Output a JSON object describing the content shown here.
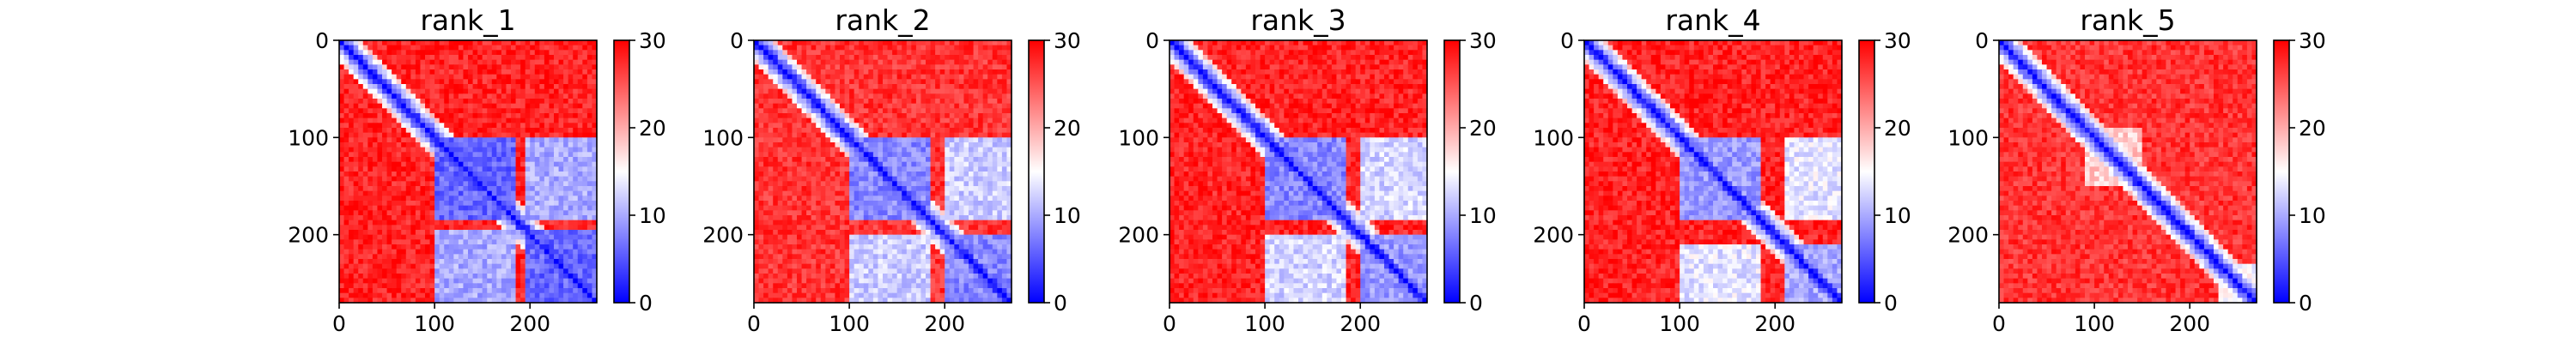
{
  "figure": {
    "description_free": true
  },
  "chart_data": [
    {
      "type": "heatmap",
      "title": "rank_1",
      "xlabel": "",
      "ylabel": "",
      "xlim": [
        0,
        270
      ],
      "ylim": [
        270,
        0
      ],
      "x_ticks": [
        0,
        100,
        200
      ],
      "y_ticks": [
        0,
        100,
        200
      ],
      "colorbar": {
        "range": [
          0,
          30
        ],
        "ticks": [
          0,
          10,
          20,
          30
        ],
        "colormap": "bwr"
      },
      "pattern": {
        "blocks": [
          {
            "range": [
              60,
              75
            ],
            "value": 13
          },
          {
            "range": [
              100,
              185
            ],
            "value": 6
          },
          {
            "range": [
              195,
              270
            ],
            "value": 6
          },
          {
            "range": [
              55,
              70
            ],
            "value": 12
          }
        ],
        "background": 28
      }
    },
    {
      "type": "heatmap",
      "title": "rank_2",
      "xlabel": "",
      "ylabel": "",
      "xlim": [
        0,
        270
      ],
      "ylim": [
        270,
        0
      ],
      "x_ticks": [
        0,
        100,
        200
      ],
      "y_ticks": [
        0,
        100,
        200
      ],
      "colorbar": {
        "range": [
          0,
          30
        ],
        "ticks": [
          0,
          10,
          20,
          30
        ],
        "colormap": "bwr"
      },
      "pattern": {
        "blocks": [
          {
            "range": [
              60,
              75
            ],
            "value": 14
          },
          {
            "range": [
              100,
              185
            ],
            "value": 8
          },
          {
            "range": [
              200,
              270
            ],
            "value": 8
          }
        ],
        "background": 27
      }
    },
    {
      "type": "heatmap",
      "title": "rank_3",
      "xlabel": "",
      "ylabel": "",
      "xlim": [
        0,
        270
      ],
      "ylim": [
        270,
        0
      ],
      "x_ticks": [
        0,
        100,
        200
      ],
      "y_ticks": [
        0,
        100,
        200
      ],
      "colorbar": {
        "range": [
          0,
          30
        ],
        "ticks": [
          0,
          10,
          20,
          30
        ],
        "colormap": "bwr"
      },
      "pattern": {
        "blocks": [
          {
            "range": [
              60,
              75
            ],
            "value": 13
          },
          {
            "range": [
              100,
              185
            ],
            "value": 8
          },
          {
            "range": [
              200,
              270
            ],
            "value": 9
          }
        ],
        "background": 28
      }
    },
    {
      "type": "heatmap",
      "title": "rank_4",
      "xlabel": "",
      "ylabel": "",
      "xlim": [
        0,
        270
      ],
      "ylim": [
        270,
        0
      ],
      "x_ticks": [
        0,
        100,
        200
      ],
      "y_ticks": [
        0,
        100,
        200
      ],
      "colorbar": {
        "range": [
          0,
          30
        ],
        "ticks": [
          0,
          10,
          20,
          30
        ],
        "colormap": "bwr"
      },
      "pattern": {
        "blocks": [
          {
            "range": [
              60,
              75
            ],
            "value": 14
          },
          {
            "range": [
              100,
              185
            ],
            "value": 9
          },
          {
            "range": [
              210,
              270
            ],
            "value": 10
          }
        ],
        "background": 28
      }
    },
    {
      "type": "heatmap",
      "title": "rank_5",
      "xlabel": "",
      "ylabel": "",
      "xlim": [
        0,
        270
      ],
      "ylim": [
        270,
        0
      ],
      "x_ticks": [
        0,
        100,
        200
      ],
      "y_ticks": [
        0,
        100,
        200
      ],
      "colorbar": {
        "range": [
          0,
          30
        ],
        "ticks": [
          0,
          10,
          20,
          30
        ],
        "colormap": "bwr"
      },
      "pattern": {
        "blocks": [
          {
            "range": [
              90,
              150
            ],
            "value": 18
          },
          {
            "range": [
              230,
              270
            ],
            "value": 15
          }
        ],
        "background": 27
      }
    }
  ]
}
